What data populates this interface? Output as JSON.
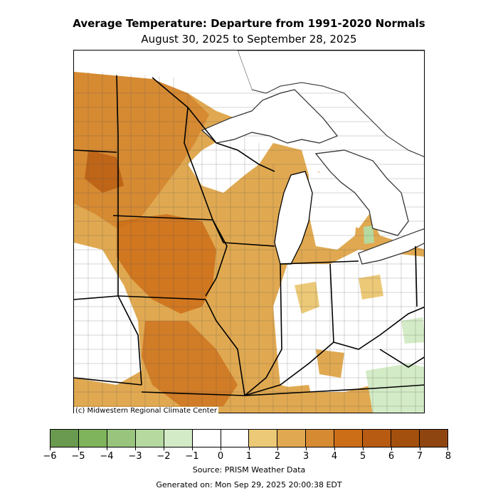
{
  "title": "Average Temperature: Departure from 1991-2020 Normals",
  "subtitle": "August 30, 2025 to September 28, 2025",
  "credit": "(c) Midwestern Regional Climate Center",
  "source": "Source: PRISM Weather Data",
  "generated": "Generated on: Mon Sep 29, 2025 20:00:38 EDT",
  "legend": {
    "ticks": [
      "−6",
      "−5",
      "−4",
      "−3",
      "−2",
      "−1",
      "0",
      "1",
      "2",
      "3",
      "4",
      "5",
      "6",
      "7",
      "8"
    ],
    "colors": [
      "#6a9a4f",
      "#80b45c",
      "#98c47d",
      "#b6d9a0",
      "#d3ebc6",
      "#ffffff",
      "#ffffff",
      "#ecc977",
      "#e0a951",
      "#d68a32",
      "#cc6e18",
      "#b85b12",
      "#a3500f",
      "#8f4510"
    ]
  },
  "colors": {
    "lake": "#ffffff",
    "state_line": "#000000",
    "county_line": "#555555"
  }
}
